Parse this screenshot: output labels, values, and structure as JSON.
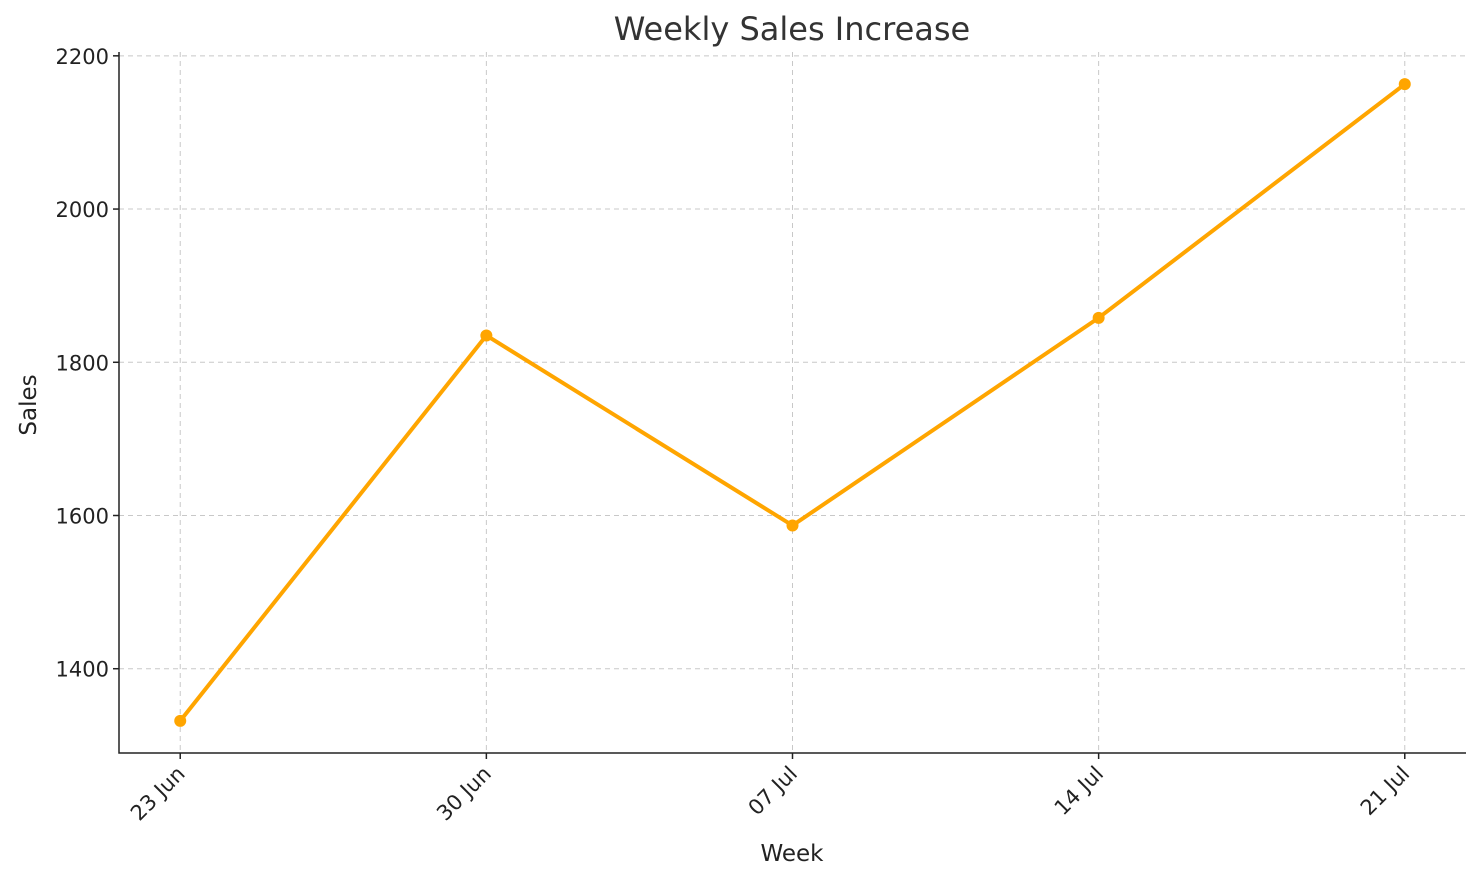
{
  "chart_data": {
    "type": "line",
    "title": "Weekly Sales Increase",
    "x_label": "Week",
    "y_label": "Sales",
    "categories": [
      "23 Jun",
      "30 Jun",
      "07 Jul",
      "14 Jul",
      "21 Jul"
    ],
    "series": [
      {
        "name": "Sales",
        "color": "#ffa500",
        "values": [
          1332,
          1835,
          1587,
          1858,
          2163
        ]
      }
    ],
    "ylim": [
      1290,
      2205
    ],
    "yticks": [
      1400,
      1600,
      1800,
      2000,
      2200
    ],
    "grid": true
  }
}
